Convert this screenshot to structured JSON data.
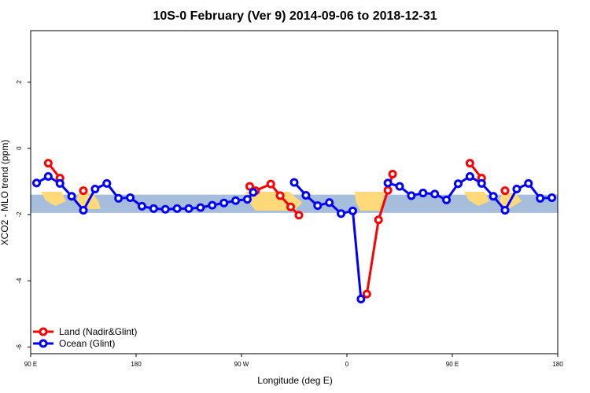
{
  "chart_data": {
    "type": "line",
    "title": "10S-0 February (Ver 9)   2014-09-06 to 2018-12-31",
    "xlabel": "Longitude (deg E)",
    "ylabel": "XCO2 - MLO trend (ppm)",
    "xlim": [
      90,
      540
    ],
    "ylim": [
      -6.2,
      3.55
    ],
    "x_ticks": [
      {
        "value": 90,
        "label": "90 E"
      },
      {
        "value": 180,
        "label": "180"
      },
      {
        "value": 270,
        "label": "90 W"
      },
      {
        "value": 360,
        "label": "0"
      },
      {
        "value": 450,
        "label": "90 E"
      },
      {
        "value": 540,
        "label": "180"
      }
    ],
    "y_ticks": [
      {
        "value": 2,
        "label": "2"
      },
      {
        "value": 0,
        "label": "0"
      },
      {
        "value": -2,
        "label": "-2"
      },
      {
        "value": -4,
        "label": "-4"
      },
      {
        "value": -6,
        "label": "-6"
      }
    ],
    "map_band": {
      "ymin": -1.95,
      "ymax": -1.4,
      "ocean_color": "#A6BDDB",
      "land_color": "#FFD97A"
    },
    "series": [
      {
        "name": "Land (Nadir&Glint)",
        "color": "#FF0000",
        "segments": [
          [
            [
              105,
              -0.45
            ],
            [
              115,
              -0.9
            ]
          ],
          [
            [
              135,
              -1.28
            ]
          ],
          [
            [
              277,
              -1.15
            ],
            [
              282,
              -1.28
            ],
            [
              295,
              -1.08
            ],
            [
              303,
              -1.43
            ],
            [
              312,
              -1.77
            ],
            [
              319,
              -2.02
            ]
          ],
          [
            [
              377,
              -4.4
            ],
            [
              387,
              -2.16
            ],
            [
              395,
              -1.27
            ],
            [
              399,
              -0.78
            ]
          ],
          [
            [
              465,
              -0.45
            ],
            [
              475,
              -0.9
            ]
          ],
          [
            [
              495,
              -1.28
            ]
          ]
        ]
      },
      {
        "name": "Ocean (Glint)",
        "color": "#0000FF",
        "segments": [
          [
            [
              95,
              -1.05
            ],
            [
              105,
              -0.85
            ],
            [
              115,
              -1.06
            ],
            [
              125,
              -1.45
            ],
            [
              135,
              -1.87
            ],
            [
              145,
              -1.23
            ],
            [
              155,
              -1.06
            ],
            [
              165,
              -1.51
            ],
            [
              175,
              -1.49
            ],
            [
              185,
              -1.75
            ],
            [
              195,
              -1.82
            ],
            [
              205,
              -1.84
            ],
            [
              215,
              -1.82
            ],
            [
              225,
              -1.82
            ],
            [
              235,
              -1.79
            ],
            [
              245,
              -1.72
            ],
            [
              255,
              -1.65
            ],
            [
              265,
              -1.58
            ],
            [
              275,
              -1.54
            ],
            [
              280,
              -1.33
            ]
          ],
          [
            [
              315,
              -1.03
            ],
            [
              325,
              -1.42
            ],
            [
              335,
              -1.73
            ],
            [
              345,
              -1.64
            ],
            [
              355,
              -1.97
            ],
            [
              365,
              -1.89
            ],
            [
              372,
              -4.55
            ]
          ],
          [
            [
              395,
              -1.05
            ],
            [
              405,
              -1.15
            ],
            [
              415,
              -1.43
            ],
            [
              425,
              -1.35
            ],
            [
              435,
              -1.38
            ],
            [
              445,
              -1.56
            ],
            [
              455,
              -1.07
            ],
            [
              465,
              -0.85
            ],
            [
              475,
              -1.06
            ],
            [
              485,
              -1.45
            ],
            [
              495,
              -1.87
            ],
            [
              505,
              -1.23
            ],
            [
              515,
              -1.06
            ],
            [
              525,
              -1.51
            ],
            [
              535,
              -1.49
            ]
          ]
        ]
      }
    ],
    "legend": {
      "position": "bottom-left",
      "entries": [
        "Land (Nadir&Glint)",
        "Ocean (Glint)"
      ]
    }
  }
}
